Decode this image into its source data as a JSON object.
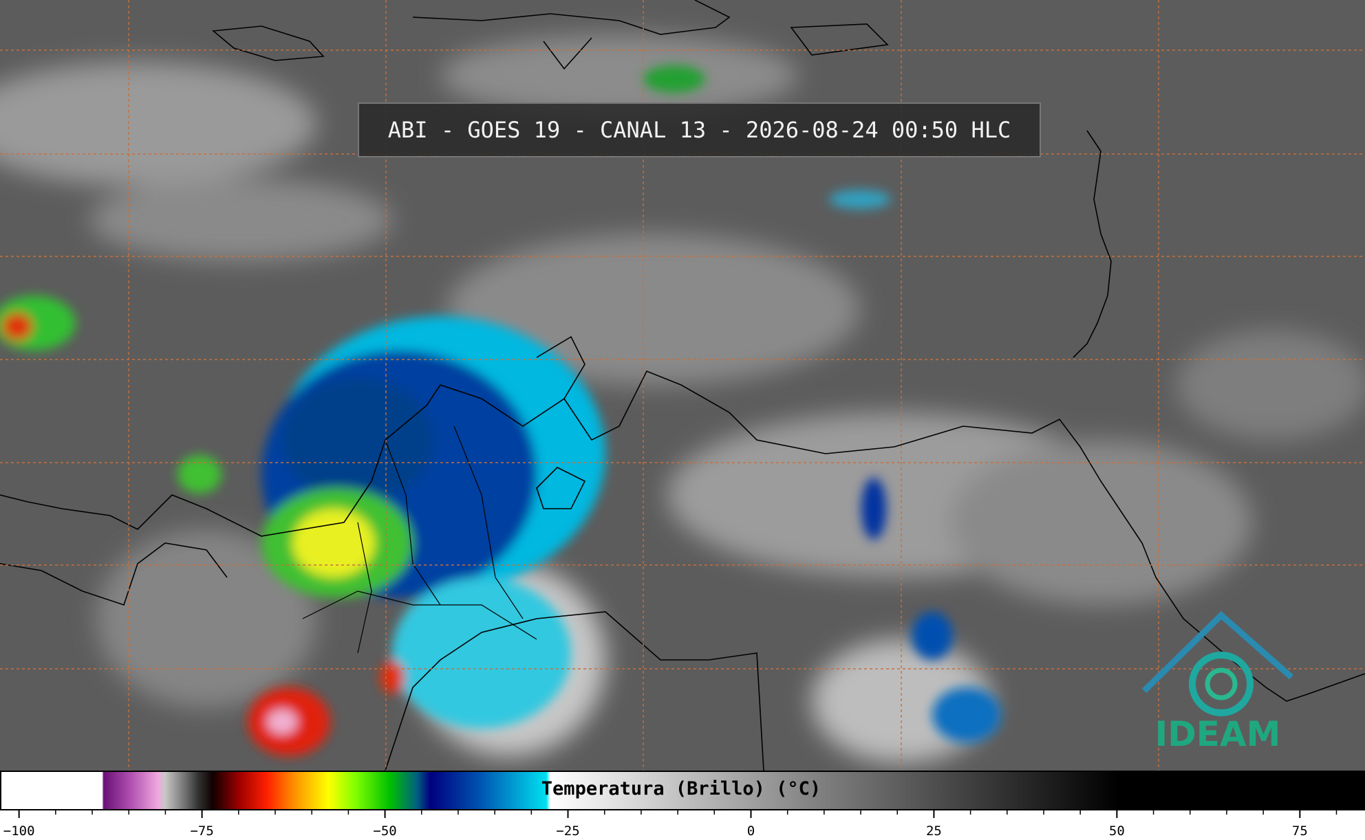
{
  "header": {
    "title": "ABI - GOES 19 - CANAL 13 - 2026-08-24 00:50 HLC"
  },
  "colorbar": {
    "label": "Temperatura (Brillo) (°C)",
    "range": [
      -102.6,
      83.9
    ],
    "minor_tick_step": 5,
    "ticks": [
      {
        "value": -100,
        "label": "−100"
      },
      {
        "value": -75,
        "label": "−75"
      },
      {
        "value": -50,
        "label": "−50"
      },
      {
        "value": -25,
        "label": "−25"
      },
      0,
      25,
      50,
      75
    ]
  },
  "logo": {
    "text": "IDEAM"
  }
}
